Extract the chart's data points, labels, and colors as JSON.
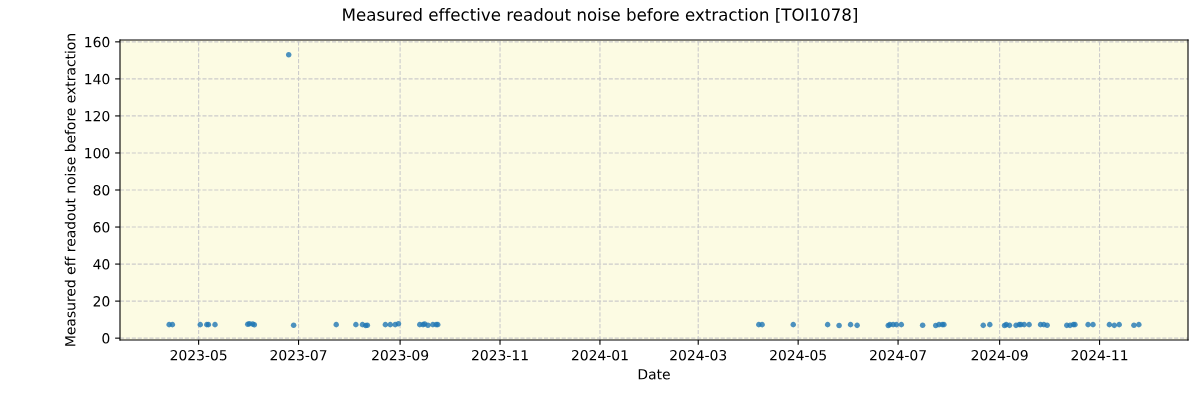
{
  "chart_data": {
    "type": "scatter",
    "title": "Measured effective readout noise before extraction [TOI1078]",
    "xlabel": "Date",
    "ylabel": "Measured eff readout noise before extraction",
    "x": [
      "2023-04-13",
      "2023-04-15",
      "2023-05-02",
      "2023-05-06",
      "2023-05-07",
      "2023-05-11",
      "2023-05-31",
      "2023-06-01",
      "2023-06-03",
      "2023-06-04",
      "2023-06-25",
      "2023-06-28",
      "2023-07-24",
      "2023-08-05",
      "2023-08-09",
      "2023-08-11",
      "2023-08-12",
      "2023-08-23",
      "2023-08-26",
      "2023-08-29",
      "2023-08-31",
      "2023-09-13",
      "2023-09-15",
      "2023-09-16",
      "2023-09-18",
      "2023-09-21",
      "2023-09-23",
      "2023-09-24",
      "2024-04-07",
      "2024-04-09",
      "2024-04-28",
      "2024-05-19",
      "2024-05-26",
      "2024-06-02",
      "2024-06-06",
      "2024-06-25",
      "2024-06-26",
      "2024-06-28",
      "2024-06-30",
      "2024-07-03",
      "2024-07-16",
      "2024-07-24",
      "2024-07-26",
      "2024-07-28",
      "2024-07-29",
      "2024-08-22",
      "2024-08-26",
      "2024-09-04",
      "2024-09-05",
      "2024-09-07",
      "2024-09-11",
      "2024-09-13",
      "2024-09-14",
      "2024-09-16",
      "2024-09-19",
      "2024-09-26",
      "2024-09-28",
      "2024-09-30",
      "2024-10-12",
      "2024-10-14",
      "2024-10-16",
      "2024-10-17",
      "2024-10-25",
      "2024-10-28",
      "2024-11-07",
      "2024-11-10",
      "2024-11-13",
      "2024-11-22",
      "2024-11-25"
    ],
    "series": [
      {
        "color": "#1f77b4",
        "values": [
          7.3,
          7.3,
          7.3,
          7.3,
          7.3,
          7.3,
          7.5,
          7.8,
          7.6,
          7.2,
          153,
          7.0,
          7.3,
          7.3,
          7.3,
          6.8,
          7.0,
          7.3,
          7.3,
          7.3,
          7.8,
          7.3,
          7.3,
          7.6,
          7.0,
          7.3,
          7.3,
          7.3,
          7.3,
          7.3,
          7.3,
          7.3,
          6.8,
          7.3,
          6.9,
          6.8,
          7.3,
          7.3,
          7.3,
          7.3,
          7.0,
          6.8,
          7.3,
          7.3,
          7.3,
          6.9,
          7.3,
          6.8,
          7.3,
          6.9,
          6.9,
          7.3,
          7.3,
          7.3,
          7.3,
          7.3,
          7.3,
          7.0,
          6.9,
          6.9,
          7.3,
          7.3,
          7.3,
          7.3,
          7.3,
          6.9,
          7.3,
          7.0,
          7.3
        ]
      }
    ],
    "xlim": [
      "2023-03-14",
      "2024-12-25"
    ],
    "xticks": [
      {
        "value": "2023-05-01",
        "label": "2023-05"
      },
      {
        "value": "2023-07-01",
        "label": "2023-07"
      },
      {
        "value": "2023-09-01",
        "label": "2023-09"
      },
      {
        "value": "2023-11-01",
        "label": "2023-11"
      },
      {
        "value": "2024-01-01",
        "label": "2024-01"
      },
      {
        "value": "2024-03-01",
        "label": "2024-03"
      },
      {
        "value": "2024-05-01",
        "label": "2024-05"
      },
      {
        "value": "2024-07-01",
        "label": "2024-07"
      },
      {
        "value": "2024-09-01",
        "label": "2024-09"
      },
      {
        "value": "2024-11-01",
        "label": "2024-11"
      }
    ],
    "ylim": [
      -1,
      161
    ],
    "yticks": [
      0,
      20,
      40,
      60,
      80,
      100,
      120,
      140,
      160
    ],
    "grid": true,
    "marker": "circle"
  }
}
